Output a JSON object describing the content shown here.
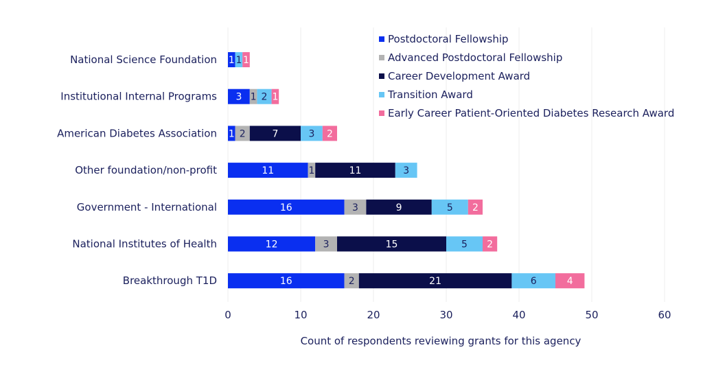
{
  "chart_data": {
    "type": "bar",
    "orientation": "horizontal",
    "stacked": true,
    "title": "",
    "xlabel": "Count of respondents reviewing grants for this agency",
    "ylabel": "",
    "xlim": [
      0,
      60
    ],
    "xticks": [
      0,
      10,
      20,
      30,
      40,
      50,
      60
    ],
    "grid": true,
    "legend_position": "top-right",
    "categories": [
      "National Science Foundation",
      "Institutional Internal Programs",
      "American Diabetes Association",
      "Other foundation/non-profit",
      "Government - International",
      "National Institutes of Health",
      "Breakthrough T1D"
    ],
    "series": [
      {
        "name": "Postdoctoral Fellowship",
        "color": "#0a2ff0",
        "label_color": "#ffffff",
        "values": [
          1,
          3,
          1,
          11,
          16,
          12,
          16
        ]
      },
      {
        "name": "Advanced Postdoctoral Fellowship",
        "color": "#b3b3b3",
        "label_color": "#1a1f5c",
        "values": [
          0,
          1,
          2,
          1,
          3,
          3,
          2
        ]
      },
      {
        "name": "Career Development Award",
        "color": "#0b0f4a",
        "label_color": "#ffffff",
        "values": [
          0,
          0,
          7,
          11,
          9,
          15,
          21
        ]
      },
      {
        "name": "Transition Award",
        "color": "#67c6f5",
        "label_color": "#1a1f5c",
        "values": [
          1,
          2,
          3,
          3,
          5,
          5,
          6
        ]
      },
      {
        "name": "Early Career Patient-Oriented Diabetes Research Award",
        "color": "#f26d9d",
        "label_color": "#ffffff",
        "values": [
          1,
          1,
          2,
          0,
          2,
          2,
          4
        ]
      }
    ]
  }
}
